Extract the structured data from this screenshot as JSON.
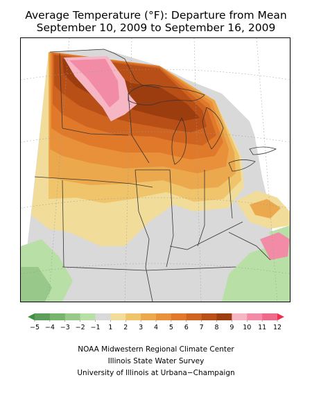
{
  "map": {
    "title_line1": "Average Temperature (°F): Departure from Mean",
    "title_line2": "September 10, 2009 to September 16, 2009",
    "region": "US Midwest",
    "legend": {
      "ticks": [
        "−5",
        "−4",
        "−3",
        "−2",
        "−1",
        "1",
        "2",
        "3",
        "4",
        "5",
        "6",
        "7",
        "8",
        "9",
        "10",
        "11",
        "12"
      ],
      "bins": [
        {
          "label": "−5 to −4",
          "color": "#5f9e5a"
        },
        {
          "label": "−4 to −3",
          "color": "#78b46e"
        },
        {
          "label": "−3 to −2",
          "color": "#98c98a"
        },
        {
          "label": "−2 to −1",
          "color": "#b8e0a6"
        },
        {
          "label": "−1 to 1",
          "color": "#d9d9d9"
        },
        {
          "label": "1 to 2",
          "color": "#f2dc9a"
        },
        {
          "label": "2 to 3",
          "color": "#efc46a"
        },
        {
          "label": "3 to 4",
          "color": "#eba84c"
        },
        {
          "label": "4 to 5",
          "color": "#e8903a"
        },
        {
          "label": "5 to 6",
          "color": "#e0792a"
        },
        {
          "label": "6 to 7",
          "color": "#cf6420"
        },
        {
          "label": "7 to 8",
          "color": "#b84f16"
        },
        {
          "label": "8 to 9",
          "color": "#9c3d10"
        },
        {
          "label": "9 to 10",
          "color": "#f7b6c4"
        },
        {
          "label": "10 to 11",
          "color": "#f28ba6"
        },
        {
          "label": "11 to 12",
          "color": "#ee6a8a"
        }
      ],
      "low_arrow_color": "#3f8f43",
      "high_arrow_color": "#ec2f4b"
    },
    "credits": [
      "NOAA Midwestern Regional Climate Center",
      "Illinois State Water Survey",
      "University of Illinois at Urbana−Champaign"
    ]
  }
}
